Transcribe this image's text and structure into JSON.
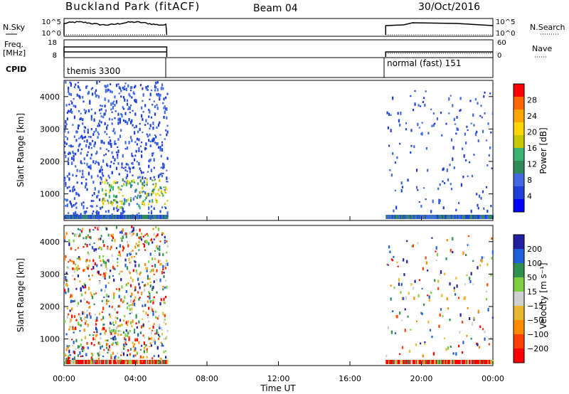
{
  "header": {
    "title": "Buckland Park (fitACF)",
    "beam": "Beam 04",
    "date": "30/Oct/2016"
  },
  "status_panels": {
    "nsky_label": "N.Sky",
    "nsky_ticks": [
      "10^5",
      "10^0"
    ],
    "nsearch_label": "N.Search",
    "nsearch_ticks": [
      "10^5",
      "10^0"
    ],
    "freq_label": "Freq.",
    "freq_unit": "[MHz]",
    "freq_ticks": [
      "18",
      "8"
    ],
    "nave_label": "Nave",
    "nave_ticks": [
      "60",
      "0"
    ],
    "cpid_label": "CPID",
    "modes": [
      "themis 3300",
      "normal (fast) 151"
    ]
  },
  "power_colorbar": {
    "label": "Power [dB]",
    "ticks": [
      "28",
      "24",
      "20",
      "16",
      "12",
      "8",
      "4"
    ],
    "colors": [
      "#ff0000",
      "#ff6a00",
      "#ffa500",
      "#ffd700",
      "#c8c800",
      "#3cb371",
      "#2e8b57",
      "#4169e1",
      "#1f3fd8",
      "#0000ff"
    ]
  },
  "velocity_colorbar": {
    "label": "Velocity [m s⁻¹]",
    "ticks": [
      "200",
      "100",
      "50",
      "15",
      "−15",
      "−50",
      "−100",
      "−200"
    ],
    "colors": [
      "#2020a0",
      "#1f5fd8",
      "#2f8f4f",
      "#7cd040",
      "#cfcfcf",
      "#e8b830",
      "#ff8c00",
      "#ff4000",
      "#ff0000"
    ]
  },
  "chart_data": [
    {
      "type": "heatmap",
      "name": "power",
      "ylabel": "Slant Range [km]",
      "yticks": [
        "4000",
        "3000",
        "2000",
        "1000"
      ],
      "ylim": [
        180,
        4500
      ],
      "xlim": [
        0,
        24
      ],
      "observing_windows_hours": [
        [
          0.0,
          5.75
        ],
        [
          18.0,
          24.0
        ]
      ],
      "value_range_db": [
        0,
        30
      ]
    },
    {
      "type": "heatmap",
      "name": "velocity",
      "ylabel": "Slant Range [km]",
      "yticks": [
        "4000",
        "3000",
        "2000",
        "1000"
      ],
      "ylim": [
        180,
        4500
      ],
      "xlim": [
        0,
        24
      ],
      "observing_windows_hours": [
        [
          0.0,
          5.75
        ],
        [
          18.0,
          24.0
        ]
      ],
      "value_range_ms": [
        -250,
        250
      ]
    }
  ],
  "x_axis": {
    "ticks": [
      "00:00",
      "04:00",
      "08:00",
      "12:00",
      "16:00",
      "20:00",
      "00:00"
    ],
    "label": "Time UT"
  }
}
